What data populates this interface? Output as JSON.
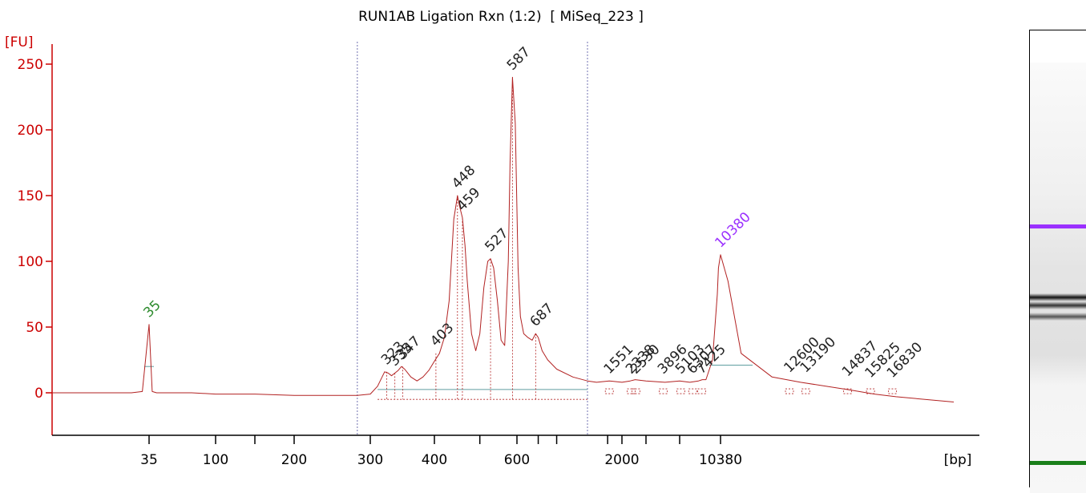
{
  "title": "RUN1AB Ligation Rxn (1:2)  [ MiSeq_223 ]",
  "chart_data": {
    "type": "line",
    "title": "RUN1AB Ligation Rxn (1:2)  [ MiSeq_223 ]",
    "ylabel": "[FU]",
    "xlabel": "[bp]",
    "ylim": [
      -30,
      260
    ],
    "yticks": [
      0,
      50,
      100,
      150,
      200,
      250
    ],
    "ytick_labels": [
      "0",
      "50",
      "100",
      "150",
      "200",
      "250"
    ],
    "x_scale": "nonlinear (sizing ladder)",
    "xtick_labels": [
      {
        "label": "35",
        "bp": 35
      },
      {
        "label": "100",
        "bp": 100
      },
      {
        "label": "200",
        "bp": 200
      },
      {
        "label": "300",
        "bp": 300
      },
      {
        "label": "400",
        "bp": 400
      },
      {
        "label": "600",
        "bp": 600
      },
      {
        "label": "2000",
        "bp": 2000
      },
      {
        "label": "10380",
        "bp": 10380
      }
    ],
    "region_bounds_bp": [
      280,
      1000
    ],
    "series": [
      {
        "color": "#b22222",
        "x": [
          15,
          20,
          25,
          30,
          33,
          35,
          37,
          40,
          50,
          70,
          100,
          150,
          200,
          250,
          280,
          300,
          310,
          320,
          325,
          330,
          335,
          340,
          345,
          350,
          360,
          370,
          380,
          390,
          400,
          410,
          420,
          430,
          440,
          448,
          452,
          459,
          465,
          470,
          480,
          490,
          500,
          510,
          520,
          527,
          535,
          545,
          555,
          565,
          575,
          580,
          587,
          595,
          605,
          615,
          630,
          650,
          670,
          687,
          700,
          720,
          750,
          800,
          900,
          1000,
          1200,
          1551,
          2000,
          2300,
          2500,
          3000,
          4000,
          5000,
          6000,
          7000,
          7500,
          8000,
          9000,
          9800,
          10000,
          10380,
          10600,
          11000,
          12000,
          13000,
          15000,
          16000,
          17000,
          20000
        ],
        "values": [
          0,
          0,
          0,
          0,
          1,
          52,
          1,
          0,
          0,
          0,
          -1,
          -1,
          -2,
          -2,
          -2,
          -1,
          5,
          16,
          15,
          13,
          15,
          17,
          20,
          18,
          12,
          9,
          12,
          17,
          24,
          30,
          42,
          70,
          132,
          150,
          143,
          133,
          112,
          85,
          45,
          32,
          45,
          80,
          100,
          102,
          95,
          70,
          40,
          36,
          100,
          175,
          240,
          205,
          95,
          58,
          45,
          42,
          40,
          45,
          42,
          32,
          25,
          18,
          12,
          9,
          8,
          9,
          8,
          9,
          10,
          9,
          8,
          9,
          8,
          9,
          10,
          10,
          25,
          75,
          95,
          105,
          85,
          30,
          12,
          8,
          2,
          -1,
          -3,
          -7
        ]
      }
    ],
    "peaks": [
      {
        "label": "35",
        "bp": 35,
        "fu": 52,
        "color": "#2e8b2e"
      },
      {
        "label": "323",
        "bp": 323,
        "fu": 16,
        "color": "#222222"
      },
      {
        "label": "335",
        "bp": 335,
        "fu": 15,
        "color": "#222222"
      },
      {
        "label": "347",
        "bp": 347,
        "fu": 20,
        "color": "#222222"
      },
      {
        "label": "403",
        "bp": 403,
        "fu": 30,
        "color": "#222222"
      },
      {
        "label": "448",
        "bp": 448,
        "fu": 150,
        "color": "#222222"
      },
      {
        "label": "459",
        "bp": 459,
        "fu": 133,
        "color": "#222222"
      },
      {
        "label": "527",
        "bp": 527,
        "fu": 102,
        "color": "#222222"
      },
      {
        "label": "587",
        "bp": 587,
        "fu": 240,
        "color": "#222222"
      },
      {
        "label": "687",
        "bp": 687,
        "fu": 45,
        "color": "#222222"
      },
      {
        "label": "1551",
        "bp": 1551,
        "fu": 9,
        "color": "#222222"
      },
      {
        "label": "2338",
        "bp": 2338,
        "fu": 9,
        "color": "#222222"
      },
      {
        "label": "2530",
        "bp": 2530,
        "fu": 9,
        "color": "#222222"
      },
      {
        "label": "3896",
        "bp": 3896,
        "fu": 9,
        "color": "#222222"
      },
      {
        "label": "5103",
        "bp": 5103,
        "fu": 9,
        "color": "#222222"
      },
      {
        "label": "6307",
        "bp": 6307,
        "fu": 9,
        "color": "#222222"
      },
      {
        "label": "7425",
        "bp": 7425,
        "fu": 9,
        "color": "#222222"
      },
      {
        "label": "10380",
        "bp": 10380,
        "fu": 105,
        "color": "#9b30ff"
      },
      {
        "label": "12600",
        "bp": 12600,
        "fu": 10,
        "color": "#222222"
      },
      {
        "label": "13190",
        "bp": 13190,
        "fu": 10,
        "color": "#222222"
      },
      {
        "label": "14837",
        "bp": 14837,
        "fu": 7,
        "color": "#222222"
      },
      {
        "label": "15825",
        "bp": 15825,
        "fu": 6,
        "color": "#222222"
      },
      {
        "label": "16830",
        "bp": 16830,
        "fu": 6,
        "color": "#222222"
      }
    ],
    "grid": false,
    "legend": "none"
  },
  "gel_lane": {
    "bands": [
      {
        "name": "upper-marker-band",
        "color": "#9b30ff",
        "position_fraction": 0.38
      },
      {
        "name": "sample-band-1",
        "color": "#111111",
        "position_fraction": 0.545
      },
      {
        "name": "sample-band-2",
        "color": "#333333",
        "position_fraction": 0.565
      },
      {
        "name": "sample-band-3",
        "color": "#555555",
        "position_fraction": 0.59
      },
      {
        "name": "lower-marker-band",
        "color": "#1a7f1a",
        "position_fraction": 0.93
      }
    ]
  },
  "colors": {
    "axis": "#cc0000",
    "trace": "#b22222",
    "baseline": "#5f9ea0",
    "region_line": "#7070b0",
    "lower_marker": "#2e8b2e",
    "upper_marker": "#9b30ff"
  }
}
